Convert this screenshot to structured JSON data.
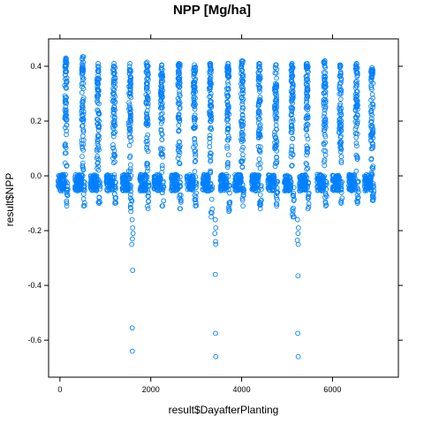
{
  "chart_data": {
    "type": "scatter",
    "title": "NPP [Mg/ha]",
    "xlabel": "result$DayafterPlanting",
    "ylabel": "result$NPP",
    "xlim": [
      -250,
      7450
    ],
    "ylim": [
      -0.735,
      0.5
    ],
    "xticks": [
      0,
      2000,
      4000,
      6000
    ],
    "yticks": [
      -0.6,
      -0.4,
      -0.2,
      0.0,
      0.2,
      0.4
    ],
    "xtick_labels": [
      "0",
      "2000",
      "4000",
      "6000"
    ],
    "ytick_labels": [
      "-0.6",
      "-0.4",
      "-0.2",
      "0.0",
      "0.2",
      "0.4"
    ],
    "marker": "open-circle",
    "color": "#0080ff",
    "season_peaks": [
      {
        "x": 130,
        "max": 0.43,
        "min": -0.11
      },
      {
        "x": 500,
        "max": 0.435,
        "min": -0.11
      },
      {
        "x": 840,
        "max": 0.41,
        "min": -0.1
      },
      {
        "x": 1190,
        "max": 0.41,
        "min": -0.1
      },
      {
        "x": 1540,
        "max": 0.41,
        "min": -0.13
      },
      {
        "x": 1920,
        "max": 0.415,
        "min": -0.12
      },
      {
        "x": 2240,
        "max": 0.405,
        "min": -0.11
      },
      {
        "x": 2620,
        "max": 0.41,
        "min": -0.12
      },
      {
        "x": 2960,
        "max": 0.405,
        "min": -0.11
      },
      {
        "x": 3310,
        "max": 0.41,
        "min": -0.15
      },
      {
        "x": 3700,
        "max": 0.41,
        "min": -0.13
      },
      {
        "x": 4010,
        "max": 0.42,
        "min": -0.11
      },
      {
        "x": 4390,
        "max": 0.41,
        "min": -0.12
      },
      {
        "x": 4750,
        "max": 0.405,
        "min": -0.11
      },
      {
        "x": 5110,
        "max": 0.41,
        "min": -0.15
      },
      {
        "x": 5440,
        "max": 0.41,
        "min": -0.12
      },
      {
        "x": 5830,
        "max": 0.42,
        "min": -0.11
      },
      {
        "x": 6170,
        "max": 0.405,
        "min": -0.1
      },
      {
        "x": 6530,
        "max": 0.41,
        "min": -0.1
      },
      {
        "x": 6870,
        "max": 0.395,
        "min": -0.09
      }
    ],
    "outliers": [
      {
        "x": 1590,
        "y": -0.16
      },
      {
        "x": 1600,
        "y": -0.19
      },
      {
        "x": 1610,
        "y": -0.21
      },
      {
        "x": 1595,
        "y": -0.23
      },
      {
        "x": 1580,
        "y": -0.25
      },
      {
        "x": 1600,
        "y": -0.345
      },
      {
        "x": 1590,
        "y": -0.555
      },
      {
        "x": 1595,
        "y": -0.64
      },
      {
        "x": 3420,
        "y": -0.16
      },
      {
        "x": 3430,
        "y": -0.19
      },
      {
        "x": 3410,
        "y": -0.21
      },
      {
        "x": 3425,
        "y": -0.24
      },
      {
        "x": 3430,
        "y": -0.25
      },
      {
        "x": 3420,
        "y": -0.36
      },
      {
        "x": 3425,
        "y": -0.575
      },
      {
        "x": 3430,
        "y": -0.66
      },
      {
        "x": 5230,
        "y": -0.16
      },
      {
        "x": 5250,
        "y": -0.19
      },
      {
        "x": 5240,
        "y": -0.21
      },
      {
        "x": 5225,
        "y": -0.235
      },
      {
        "x": 5245,
        "y": -0.25
      },
      {
        "x": 5240,
        "y": -0.365
      },
      {
        "x": 5235,
        "y": -0.575
      },
      {
        "x": 5245,
        "y": -0.66
      }
    ]
  }
}
